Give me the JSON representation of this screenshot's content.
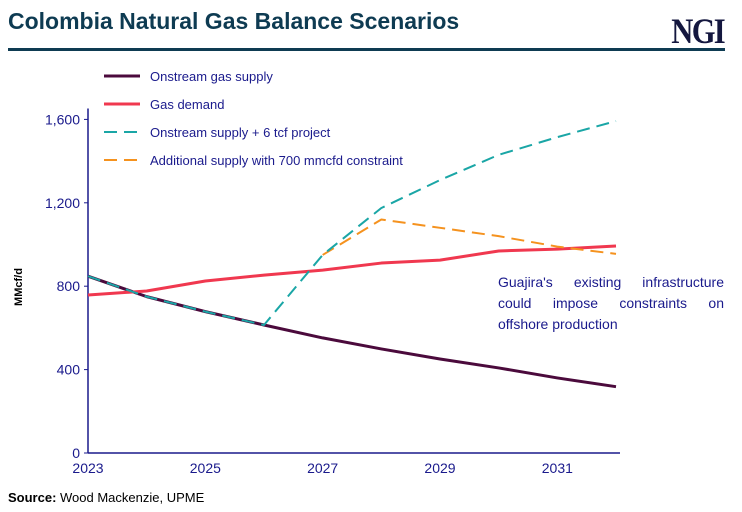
{
  "title": "Colombia Natural Gas Balance Scenarios",
  "logo": "NGI",
  "source_label": "Source:",
  "source_text": " Wood Mackenzie, UPME",
  "chart_data": {
    "type": "line",
    "title": "",
    "xlabel": "",
    "ylabel": "MMcf/d",
    "x": [
      2023,
      2024,
      2025,
      2026,
      2027,
      2028,
      2029,
      2030,
      2031,
      2032
    ],
    "xticks": [
      "2023",
      "2025",
      "2027",
      "2029",
      "2031"
    ],
    "yticks": [
      "0",
      "400",
      "800",
      "1,200",
      "1,600"
    ],
    "ylim": [
      0,
      1700
    ],
    "xlim": [
      2023,
      2032
    ],
    "grid": false,
    "legend": "top-left",
    "series": [
      {
        "name": "Onstream gas supply",
        "color": "#4b0a3c",
        "dash": "solid",
        "values": [
          848,
          750,
          678,
          614,
          552,
          499,
          451,
          408,
          360,
          318
        ]
      },
      {
        "name": "Gas demand",
        "color": "#f0384f",
        "dash": "solid",
        "values": [
          758,
          777,
          825,
          853,
          877,
          911,
          925,
          969,
          978,
          993
        ]
      },
      {
        "name": "Onstream supply + 6 tcf project",
        "color": "#1aa6a6",
        "dash": "dashed",
        "values": [
          848,
          750,
          678,
          614,
          950,
          1175,
          1309,
          1430,
          1515,
          1592
        ]
      },
      {
        "name": "Additional supply with 700 mmcfd constraint",
        "color": "#f5921e",
        "dash": "dashed",
        "values": [
          null,
          null,
          null,
          null,
          950,
          1120,
          1080,
          1040,
          990,
          955
        ]
      }
    ],
    "annotation": "Guajira's existing infrastructure could impose constraints on offshore production"
  }
}
